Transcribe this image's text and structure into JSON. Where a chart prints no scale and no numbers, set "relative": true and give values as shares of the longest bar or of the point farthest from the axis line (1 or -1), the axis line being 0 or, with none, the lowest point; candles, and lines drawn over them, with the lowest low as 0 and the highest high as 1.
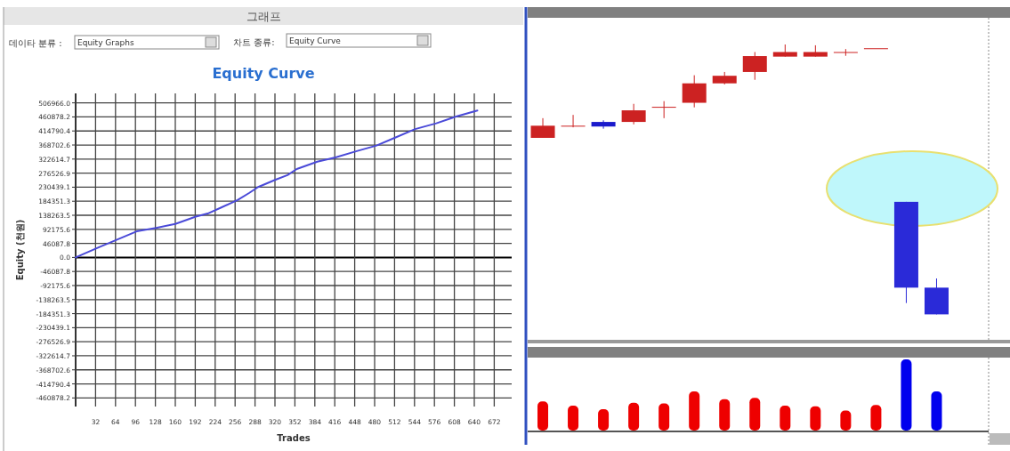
{
  "chart_data": [
    {
      "type": "line",
      "title": "Equity Curve",
      "xlabel": "Trades",
      "ylabel": "Equity (천원)",
      "annotations": [
        "그래프",
        "데이타 분류 :",
        "Equity Graphs",
        "차트 종류:",
        "Equity Curve"
      ],
      "series": [
        {
          "color": "#4a4ad8",
          "x": [
            0,
            36,
            64,
            98,
            129,
            160,
            193,
            212,
            233,
            260,
            279,
            293,
            321,
            340,
            355,
            388,
            417,
            450,
            483,
            512,
            545,
            579,
            612,
            645
          ],
          "values": [
            0,
            32000,
            56000,
            85500,
            97000,
            110000,
            134000,
            144000,
            163000,
            188000,
            212000,
            231000,
            255000,
            270000,
            290000,
            314000,
            328000,
            348000,
            367000,
            392000,
            421000,
            440000,
            463000,
            482000
          ]
        }
      ],
      "xlim": [
        0,
        700
      ],
      "ylim": [
        -489000,
        538000
      ],
      "xticks": [
        32,
        64,
        96,
        128,
        160,
        192,
        224,
        256,
        288,
        320,
        352,
        384,
        416,
        448,
        480,
        512,
        544,
        576,
        608,
        640,
        672
      ],
      "yticks": [
        {
          "value": 506966,
          "label": "506966.0"
        },
        {
          "value": 460878.2,
          "label": "460878.2"
        },
        {
          "value": 414790.4,
          "label": "414790.4"
        },
        {
          "value": 368702.6,
          "label": "368702.6"
        },
        {
          "value": 322614.7,
          "label": "322614.7"
        },
        {
          "value": 276526.9,
          "label": "276526.9"
        },
        {
          "value": 230439.1,
          "label": "230439.1"
        },
        {
          "value": 184351.3,
          "label": "184351.3"
        },
        {
          "value": 138263.5,
          "label": "138263.5"
        },
        {
          "value": 92175.6,
          "label": "92175.6"
        },
        {
          "value": 46087.8,
          "label": "46087.8"
        },
        {
          "value": 0,
          "label": "0.0"
        },
        {
          "value": -46087.8,
          "label": "-46087.8"
        },
        {
          "value": -92175.6,
          "label": "-92175.6"
        },
        {
          "value": -138263.5,
          "label": "-138263.5"
        },
        {
          "value": -184351.3,
          "label": "-184351.3"
        },
        {
          "value": -230439.1,
          "label": "-230439.1"
        },
        {
          "value": -276526.9,
          "label": "-276526.9"
        },
        {
          "value": -322614.7,
          "label": "-322614.7"
        },
        {
          "value": -368702.6,
          "label": "-368702.6"
        },
        {
          "value": -414790.4,
          "label": "-414790.4"
        },
        {
          "value": -460878.2,
          "label": "-460878.2"
        }
      ],
      "grid": true
    },
    {
      "type": "candlestick",
      "relative": true,
      "categories": [
        null,
        null,
        null,
        null,
        null,
        null,
        null,
        null,
        null,
        null,
        null,
        null,
        null,
        null
      ],
      "ohlc": [
        [
          0.654,
          0.727,
          0.654,
          0.699
        ],
        [
          0.699,
          0.739,
          0.693,
          0.699
        ],
        [
          0.713,
          0.719,
          0.688,
          0.696
        ],
        [
          0.713,
          0.78,
          0.704,
          0.756
        ],
        [
          0.769,
          0.79,
          0.727,
          0.769
        ],
        [
          0.784,
          0.886,
          0.767,
          0.856
        ],
        [
          0.856,
          0.898,
          0.852,
          0.884
        ],
        [
          0.898,
          0.972,
          0.869,
          0.957
        ],
        [
          0.955,
          1,
          0.955,
          0.972
        ],
        [
          0.955,
          0.997,
          0.955,
          0.972
        ],
        [
          0.972,
          0.983,
          0.958,
          0.972
        ],
        [
          0.986,
          0.986,
          0.986,
          0.986
        ],
        [
          0.417,
          0.417,
          0.042,
          0.099
        ],
        [
          0.099,
          0.133,
          0,
          0
        ]
      ],
      "colors": [
        "#cc2222",
        "#cc2222",
        "#1a1acc",
        "#cc2222",
        "#cc2222",
        "#cc2222",
        "#cc2222",
        "#cc2222",
        "#cc2222",
        "#cc2222",
        "#cc2222",
        "#cc2222",
        "#2a2ad8",
        "#2a2ad8"
      ]
    },
    {
      "type": "bar",
      "relative": true,
      "categories": [
        null,
        null,
        null,
        null,
        null,
        null,
        null,
        null,
        null,
        null,
        null,
        null,
        null,
        null
      ],
      "values": [
        0.41,
        0.35,
        0.3,
        0.39,
        0.38,
        0.55,
        0.44,
        0.46,
        0.35,
        0.34,
        0.28,
        0.36,
        1,
        0.55
      ],
      "colors": [
        "#ee0000",
        "#ee0000",
        "#ee0000",
        "#ee0000",
        "#ee0000",
        "#ee0000",
        "#ee0000",
        "#ee0000",
        "#ee0000",
        "#ee0000",
        "#ee0000",
        "#ee0000",
        "#0000ee",
        "#0000ee"
      ]
    }
  ]
}
